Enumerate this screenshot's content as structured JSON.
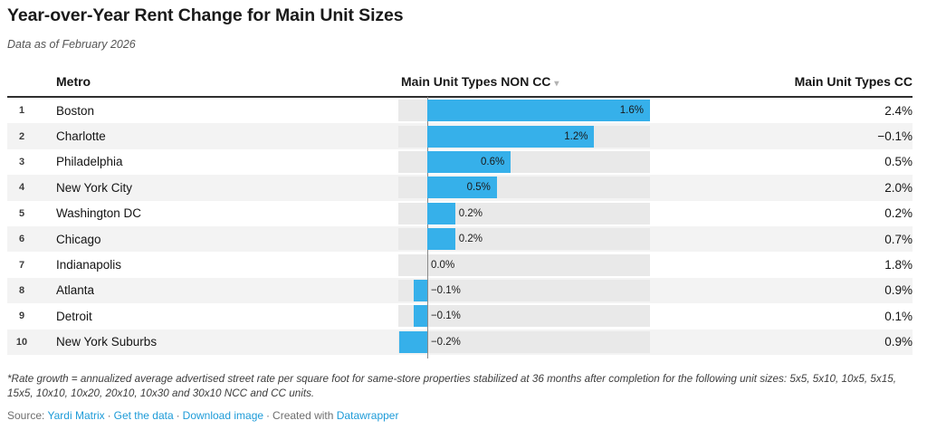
{
  "header": {
    "title": "Year-over-Year Rent Change for Main Unit Sizes",
    "subtitle": "Data as of February 2026"
  },
  "table": {
    "columns": {
      "metro": "Metro",
      "non_cc": "Main Unit Types NON CC",
      "cc": "Main Unit Types CC"
    },
    "sort_icon": "▾",
    "rows": [
      {
        "rank": "1",
        "metro": "Boston",
        "non_cc": 1.6,
        "non_cc_label": "1.6%",
        "cc": "2.4%"
      },
      {
        "rank": "2",
        "metro": "Charlotte",
        "non_cc": 1.2,
        "non_cc_label": "1.2%",
        "cc": "−0.1%"
      },
      {
        "rank": "3",
        "metro": "Philadelphia",
        "non_cc": 0.6,
        "non_cc_label": "0.6%",
        "cc": "0.5%"
      },
      {
        "rank": "4",
        "metro": "New York City",
        "non_cc": 0.5,
        "non_cc_label": "0.5%",
        "cc": "2.0%"
      },
      {
        "rank": "5",
        "metro": "Washington DC",
        "non_cc": 0.2,
        "non_cc_label": "0.2%",
        "cc": "0.2%"
      },
      {
        "rank": "6",
        "metro": "Chicago",
        "non_cc": 0.2,
        "non_cc_label": "0.2%",
        "cc": "0.7%"
      },
      {
        "rank": "7",
        "metro": "Indianapolis",
        "non_cc": 0.0,
        "non_cc_label": "0.0%",
        "cc": "1.8%"
      },
      {
        "rank": "8",
        "metro": "Atlanta",
        "non_cc": -0.1,
        "non_cc_label": "−0.1%",
        "cc": "0.9%"
      },
      {
        "rank": "9",
        "metro": "Detroit",
        "non_cc": -0.1,
        "non_cc_label": "−0.1%",
        "cc": "0.1%"
      },
      {
        "rank": "10",
        "metro": "New York Suburbs",
        "non_cc": -0.2,
        "non_cc_label": "−0.2%",
        "cc": "0.9%"
      }
    ]
  },
  "chart_data": {
    "type": "bar",
    "title": "Year-over-Year Rent Change for Main Unit Sizes",
    "subtitle": "Data as of February 2026",
    "categories": [
      "Boston",
      "Charlotte",
      "Philadelphia",
      "New York City",
      "Washington DC",
      "Chicago",
      "Indianapolis",
      "Atlanta",
      "Detroit",
      "New York Suburbs"
    ],
    "series": [
      {
        "name": "Main Unit Types NON CC",
        "values": [
          1.6,
          1.2,
          0.6,
          0.5,
          0.2,
          0.2,
          0.0,
          -0.1,
          -0.1,
          -0.2
        ]
      },
      {
        "name": "Main Unit Types CC",
        "values": [
          2.4,
          -0.1,
          0.5,
          2.0,
          0.2,
          0.7,
          1.8,
          0.9,
          0.1,
          0.9
        ]
      }
    ],
    "unit": "%",
    "bar_axis_range": [
      -0.208,
      1.6
    ],
    "legend_position": "none",
    "grid": false
  },
  "footer": {
    "footnote": "*Rate growth = annualized average advertised street rate per square foot for same-store properties stabilized at 36 months after completion for the following unit sizes: 5x5, 5x10, 10x5, 5x15, 15x5, 10x10, 10x20, 20x10, 10x30 and 30x10 NCC and CC units.",
    "source_prefix": "Source:",
    "source_link": "Yardi Matrix",
    "separator": "·",
    "get_data_link": "Get the data",
    "download_link": "Download image",
    "created_with": "Created with",
    "datawrapper_link": "Datawrapper"
  },
  "colors": {
    "bar": "#36b0ea",
    "link": "#1d9bd8",
    "zero_line": "#8a8a8a",
    "row_stripe": "#f3f3f3",
    "bar_track": "#e9e9e9"
  }
}
